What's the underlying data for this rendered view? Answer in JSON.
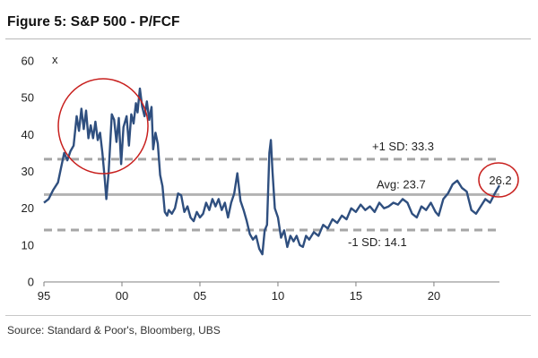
{
  "figure": {
    "title": "Figure 5: S&P 500 - P/FCF",
    "source": "Source: Standard & Poor's, Bloomberg, UBS"
  },
  "colors": {
    "series": "#2f4f7f",
    "avg_line": "#b3b3b3",
    "sd_lines": "#a6a6a6",
    "highlight_circle": "#c8201e"
  },
  "chart_data": {
    "type": "line",
    "title": "Figure 5: S&P 500 - P/FCF",
    "xlabel": "",
    "ylabel": "x",
    "xlim": [
      1995,
      2024.2
    ],
    "ylim": [
      0,
      60
    ],
    "x_ticks": [
      1995,
      2000,
      2005,
      2010,
      2015,
      2020
    ],
    "x_tick_labels": [
      "95",
      "00",
      "05",
      "10",
      "15",
      "20"
    ],
    "y_ticks": [
      0,
      10,
      20,
      30,
      40,
      50,
      60
    ],
    "y_tick_labels": [
      "0",
      "10",
      "20",
      "30",
      "40",
      "50",
      "60"
    ],
    "grid": false,
    "reference_lines": [
      {
        "label": "+1 SD: 33.3",
        "value": 33.3,
        "style": "dashed"
      },
      {
        "label": "Avg: 23.7",
        "value": 23.7,
        "style": "solid"
      },
      {
        "label": "-1 SD: 14.1",
        "value": 14.1,
        "style": "dashed"
      }
    ],
    "end_label": "26.2",
    "series": [
      {
        "name": "",
        "points": [
          [
            1995.0,
            21.5
          ],
          [
            1995.3,
            22.5
          ],
          [
            1995.6,
            25.0
          ],
          [
            1995.9,
            27.0
          ],
          [
            1996.1,
            31.0
          ],
          [
            1996.3,
            35.0
          ],
          [
            1996.5,
            33.0
          ],
          [
            1996.7,
            35.5
          ],
          [
            1996.9,
            37.0
          ],
          [
            1997.1,
            45.0
          ],
          [
            1997.25,
            41.0
          ],
          [
            1997.4,
            47.0
          ],
          [
            1997.55,
            41.5
          ],
          [
            1997.7,
            46.5
          ],
          [
            1997.85,
            39.0
          ],
          [
            1998.0,
            42.5
          ],
          [
            1998.15,
            39.0
          ],
          [
            1998.3,
            43.5
          ],
          [
            1998.45,
            38.5
          ],
          [
            1998.6,
            40.5
          ],
          [
            1998.75,
            35.0
          ],
          [
            1998.9,
            28.0
          ],
          [
            1999.0,
            22.5
          ],
          [
            1999.15,
            30.0
          ],
          [
            1999.35,
            45.5
          ],
          [
            1999.5,
            44.0
          ],
          [
            1999.65,
            38.0
          ],
          [
            1999.8,
            44.5
          ],
          [
            1999.95,
            32.0
          ],
          [
            2000.1,
            42.0
          ],
          [
            2000.3,
            45.0
          ],
          [
            2000.45,
            37.0
          ],
          [
            2000.6,
            45.5
          ],
          [
            2000.75,
            43.0
          ],
          [
            2000.9,
            48.5
          ],
          [
            2001.0,
            46.0
          ],
          [
            2001.15,
            52.5
          ],
          [
            2001.3,
            47.5
          ],
          [
            2001.45,
            45.0
          ],
          [
            2001.6,
            49.0
          ],
          [
            2001.75,
            44.0
          ],
          [
            2001.9,
            47.5
          ],
          [
            2002.0,
            36.0
          ],
          [
            2002.15,
            40.5
          ],
          [
            2002.3,
            37.5
          ],
          [
            2002.45,
            29.0
          ],
          [
            2002.6,
            26.0
          ],
          [
            2002.75,
            19.0
          ],
          [
            2002.9,
            18.0
          ],
          [
            2003.0,
            19.5
          ],
          [
            2003.2,
            18.5
          ],
          [
            2003.4,
            20.0
          ],
          [
            2003.6,
            24.0
          ],
          [
            2003.8,
            23.5
          ],
          [
            2004.0,
            19.0
          ],
          [
            2004.2,
            20.5
          ],
          [
            2004.4,
            17.5
          ],
          [
            2004.6,
            16.5
          ],
          [
            2004.8,
            19.0
          ],
          [
            2005.0,
            17.5
          ],
          [
            2005.2,
            18.5
          ],
          [
            2005.4,
            21.5
          ],
          [
            2005.6,
            19.5
          ],
          [
            2005.8,
            22.5
          ],
          [
            2006.0,
            20.5
          ],
          [
            2006.2,
            22.5
          ],
          [
            2006.4,
            19.5
          ],
          [
            2006.6,
            21.5
          ],
          [
            2006.8,
            17.5
          ],
          [
            2007.0,
            21.5
          ],
          [
            2007.2,
            24.0
          ],
          [
            2007.4,
            29.5
          ],
          [
            2007.6,
            22.0
          ],
          [
            2007.8,
            19.5
          ],
          [
            2008.0,
            16.5
          ],
          [
            2008.2,
            13.0
          ],
          [
            2008.4,
            11.5
          ],
          [
            2008.6,
            12.5
          ],
          [
            2008.8,
            9.0
          ],
          [
            2009.0,
            7.5
          ],
          [
            2009.15,
            14.0
          ],
          [
            2009.3,
            15.5
          ],
          [
            2009.45,
            35.0
          ],
          [
            2009.55,
            38.5
          ],
          [
            2009.65,
            30.0
          ],
          [
            2009.8,
            20.0
          ],
          [
            2010.0,
            17.5
          ],
          [
            2010.2,
            12.0
          ],
          [
            2010.4,
            14.0
          ],
          [
            2010.6,
            9.5
          ],
          [
            2010.8,
            12.5
          ],
          [
            2011.0,
            11.0
          ],
          [
            2011.2,
            12.5
          ],
          [
            2011.4,
            10.0
          ],
          [
            2011.6,
            9.5
          ],
          [
            2011.8,
            12.5
          ],
          [
            2012.0,
            11.5
          ],
          [
            2012.3,
            13.5
          ],
          [
            2012.6,
            12.5
          ],
          [
            2012.9,
            15.5
          ],
          [
            2013.2,
            14.5
          ],
          [
            2013.5,
            17.0
          ],
          [
            2013.8,
            16.0
          ],
          [
            2014.1,
            18.0
          ],
          [
            2014.4,
            17.0
          ],
          [
            2014.7,
            20.0
          ],
          [
            2015.0,
            19.0
          ],
          [
            2015.3,
            21.0
          ],
          [
            2015.6,
            19.5
          ],
          [
            2015.9,
            20.5
          ],
          [
            2016.2,
            19.0
          ],
          [
            2016.5,
            21.5
          ],
          [
            2016.8,
            20.0
          ],
          [
            2017.1,
            20.5
          ],
          [
            2017.4,
            21.5
          ],
          [
            2017.7,
            21.0
          ],
          [
            2018.0,
            22.5
          ],
          [
            2018.3,
            21.5
          ],
          [
            2018.6,
            18.5
          ],
          [
            2018.9,
            17.5
          ],
          [
            2019.2,
            20.5
          ],
          [
            2019.5,
            19.5
          ],
          [
            2019.8,
            21.5
          ],
          [
            2020.1,
            19.0
          ],
          [
            2020.3,
            18.0
          ],
          [
            2020.6,
            22.5
          ],
          [
            2020.9,
            24.0
          ],
          [
            2021.2,
            26.5
          ],
          [
            2021.5,
            27.5
          ],
          [
            2021.8,
            25.5
          ],
          [
            2022.1,
            24.5
          ],
          [
            2022.4,
            19.5
          ],
          [
            2022.7,
            18.5
          ],
          [
            2023.0,
            20.5
          ],
          [
            2023.3,
            22.5
          ],
          [
            2023.6,
            21.5
          ],
          [
            2023.9,
            24.0
          ],
          [
            2024.2,
            26.2
          ]
        ]
      }
    ]
  }
}
